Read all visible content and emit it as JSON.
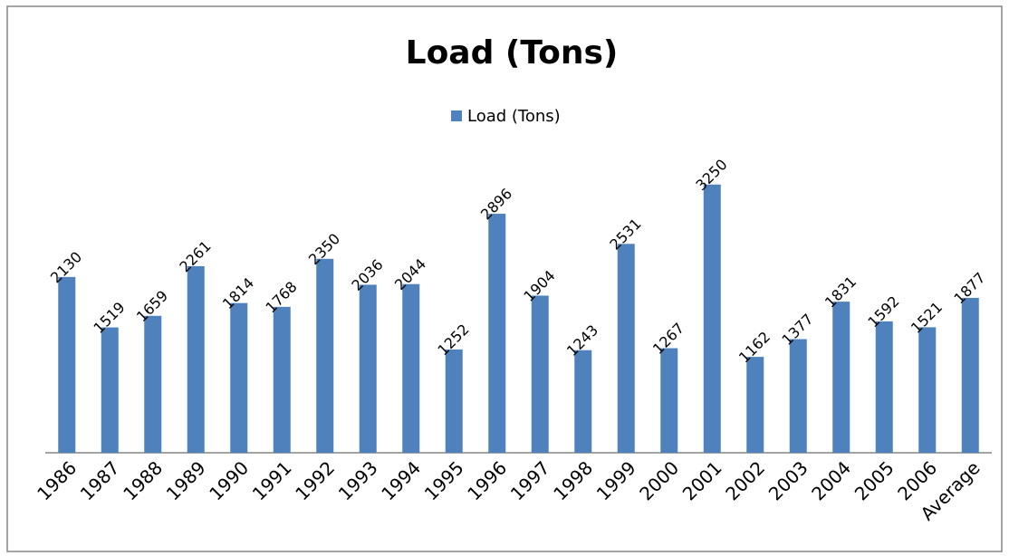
{
  "chart_data": {
    "type": "bar",
    "title": "Load (Tons)",
    "categories": [
      "1986",
      "1987",
      "1988",
      "1989",
      "1990",
      "1991",
      "1992",
      "1993",
      "1994",
      "1995",
      "1996",
      "1997",
      "1998",
      "1999",
      "2000",
      "2001",
      "2002",
      "2003",
      "2004",
      "2005",
      "2006",
      "Average"
    ],
    "series": [
      {
        "name": "Load (Tons)",
        "color": "#4f81bd",
        "values": [
          2130,
          1519,
          1659,
          2261,
          1814,
          1768,
          2350,
          2036,
          2044,
          1252,
          2896,
          1904,
          1243,
          2531,
          1267,
          3250,
          1162,
          1377,
          1831,
          1592,
          1521,
          1877
        ]
      }
    ],
    "ylim": [
      0,
      3500
    ],
    "legend": "top"
  }
}
